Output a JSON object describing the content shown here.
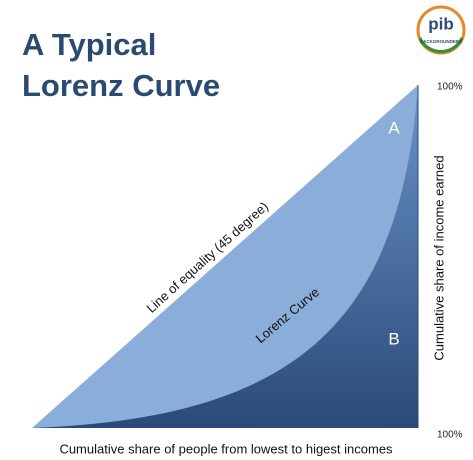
{
  "title": {
    "line1": "A Typical",
    "line2": "Lorenz Curve"
  },
  "logo": {
    "name": "pib",
    "tagline": "BACKGROUNDERS"
  },
  "diagram": {
    "labels": {
      "area_a": "A",
      "area_b": "B",
      "equality_line": "Line of equality (45 degree)",
      "lorenz_curve": "Lorenz Curve"
    },
    "y_axis": {
      "label": "Cumulative share of income earned",
      "top": "100%"
    },
    "x_axis": {
      "label": "Cumulative share of people from lowest to higest incomes",
      "end": "100%"
    }
  }
}
